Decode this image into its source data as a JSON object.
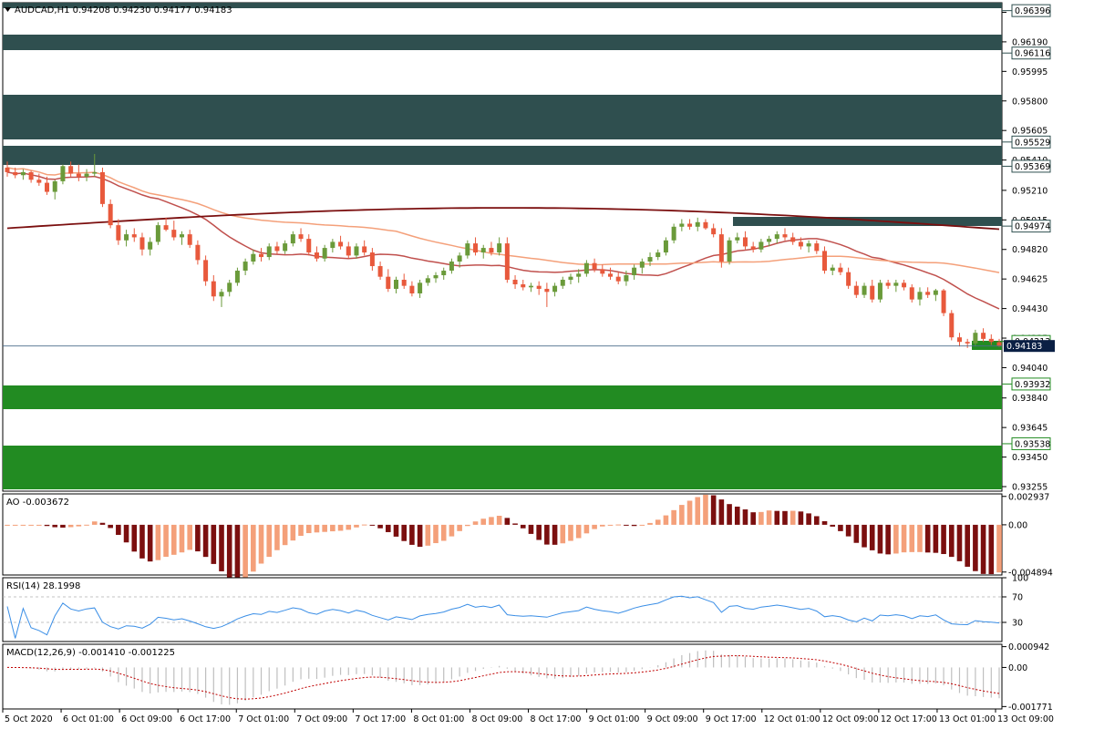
{
  "window": {
    "symbol_header": "AUDCAD,H1  0.94208 0.94230 0.94177 0.94183"
  },
  "main_price_axis": {
    "ticks": [
      "0.96385",
      "0.96190",
      "0.95995",
      "0.95800",
      "0.95605",
      "0.95410",
      "0.95210",
      "0.95015",
      "0.94820",
      "0.94625",
      "0.94430",
      "0.94235",
      "0.94040",
      "0.93840",
      "0.93645",
      "0.93450",
      "0.93255"
    ]
  },
  "zones": [
    {
      "label": "0.96396",
      "kind": "resistance"
    },
    {
      "label": "0.96116",
      "kind": "resistance"
    },
    {
      "label": "0.95529",
      "kind": "resistance"
    },
    {
      "label": "0.95369",
      "kind": "resistance"
    },
    {
      "label": "0.94974",
      "kind": "resistance"
    },
    {
      "label": "0.94213",
      "kind": "support"
    },
    {
      "label": "0.93932",
      "kind": "support"
    },
    {
      "label": "0.93538",
      "kind": "support"
    }
  ],
  "current_price": "0.94183",
  "indicators": {
    "ao": {
      "label": "AO -0.003672",
      "ticks": [
        "0.002937",
        "0.00",
        "-0.004894"
      ]
    },
    "rsi": {
      "label": "RSI(14) 28.1998",
      "ticks": [
        "100",
        "70",
        "30",
        "0"
      ]
    },
    "macd": {
      "label": "MACD(12,26,9) -0.001410 -0.001225",
      "ticks": [
        "0.000942",
        "0.00",
        "-0.001771"
      ]
    }
  },
  "time_axis": [
    "5 Oct 2020",
    "6 Oct 01:00",
    "6 Oct 09:00",
    "6 Oct 17:00",
    "7 Oct 01:00",
    "7 Oct 09:00",
    "7 Oct 17:00",
    "8 Oct 01:00",
    "8 Oct 09:00",
    "8 Oct 17:00",
    "9 Oct 01:00",
    "9 Oct 09:00",
    "9 Oct 17:00",
    "12 Oct 01:00",
    "12 Oct 09:00",
    "12 Oct 17:00",
    "13 Oct 01:00",
    "13 Oct 09:00"
  ],
  "colors": {
    "bull": "#6a9a3a",
    "bear": "#e8593c",
    "resistance_zone": "#2f4f4f",
    "support_zone": "#228b22",
    "ma_fast": "#c0504d",
    "ma_mid": "#f4a07a",
    "ma_slow": "#7b0f0f",
    "ao_up": "#f4a07a",
    "ao_down": "#7b0f0f",
    "rsi_line": "#3a8ee6",
    "macd_signal": "#c00000",
    "macd_hist": "#bfbfbf"
  },
  "chart_data": {
    "type": "candlestick",
    "candles": [
      [
        0.9536,
        0.954,
        0.953,
        0.9533
      ],
      [
        0.9533,
        0.9536,
        0.9529,
        0.9531
      ],
      [
        0.9531,
        0.9535,
        0.9528,
        0.9533
      ],
      [
        0.9533,
        0.9534,
        0.9526,
        0.9528
      ],
      [
        0.9528,
        0.9532,
        0.9524,
        0.9526
      ],
      [
        0.9526,
        0.953,
        0.9518,
        0.952
      ],
      [
        0.952,
        0.9528,
        0.9515,
        0.9527
      ],
      [
        0.9527,
        0.9538,
        0.9525,
        0.9537
      ],
      [
        0.9537,
        0.954,
        0.953,
        0.9532
      ],
      [
        0.9532,
        0.9538,
        0.9527,
        0.953
      ],
      [
        0.953,
        0.9535,
        0.9527,
        0.9532
      ],
      [
        0.9532,
        0.9545,
        0.953,
        0.9533
      ],
      [
        0.9533,
        0.9536,
        0.951,
        0.9512
      ],
      [
        0.9512,
        0.9515,
        0.9496,
        0.9498
      ],
      [
        0.9498,
        0.9502,
        0.9485,
        0.9488
      ],
      [
        0.9488,
        0.9495,
        0.9484,
        0.9492
      ],
      [
        0.9492,
        0.9496,
        0.9487,
        0.949
      ],
      [
        0.949,
        0.9493,
        0.9478,
        0.9482
      ],
      [
        0.9482,
        0.949,
        0.9478,
        0.9487
      ],
      [
        0.9487,
        0.95,
        0.9485,
        0.9498
      ],
      [
        0.9498,
        0.9503,
        0.9494,
        0.9495
      ],
      [
        0.9495,
        0.9501,
        0.9488,
        0.949
      ],
      [
        0.949,
        0.9494,
        0.9485,
        0.9492
      ],
      [
        0.9492,
        0.9495,
        0.9483,
        0.9485
      ],
      [
        0.9485,
        0.9488,
        0.9472,
        0.9475
      ],
      [
        0.9475,
        0.9478,
        0.9458,
        0.9461
      ],
      [
        0.9461,
        0.9465,
        0.9448,
        0.9451
      ],
      [
        0.9451,
        0.9456,
        0.9444,
        0.9454
      ],
      [
        0.9454,
        0.9462,
        0.9451,
        0.946
      ],
      [
        0.946,
        0.947,
        0.9458,
        0.9468
      ],
      [
        0.9468,
        0.9476,
        0.9465,
        0.9474
      ],
      [
        0.9474,
        0.9482,
        0.9472,
        0.9479
      ],
      [
        0.9479,
        0.9483,
        0.9474,
        0.9477
      ],
      [
        0.9477,
        0.9486,
        0.9475,
        0.9484
      ],
      [
        0.9484,
        0.9487,
        0.9479,
        0.9481
      ],
      [
        0.9481,
        0.9488,
        0.9479,
        0.9486
      ],
      [
        0.9486,
        0.9494,
        0.9484,
        0.9492
      ],
      [
        0.9492,
        0.9496,
        0.9487,
        0.9489
      ],
      [
        0.9489,
        0.9492,
        0.9478,
        0.948
      ],
      [
        0.948,
        0.9484,
        0.9474,
        0.9476
      ],
      [
        0.9476,
        0.9485,
        0.9474,
        0.9483
      ],
      [
        0.9483,
        0.9489,
        0.948,
        0.9487
      ],
      [
        0.9487,
        0.9491,
        0.9482,
        0.9484
      ],
      [
        0.9484,
        0.9487,
        0.9476,
        0.9478
      ],
      [
        0.9478,
        0.9486,
        0.9476,
        0.9484
      ],
      [
        0.9484,
        0.9488,
        0.9478,
        0.948
      ],
      [
        0.948,
        0.9483,
        0.9468,
        0.9471
      ],
      [
        0.9471,
        0.9474,
        0.9462,
        0.9464
      ],
      [
        0.9464,
        0.9469,
        0.9454,
        0.9456
      ],
      [
        0.9456,
        0.9464,
        0.9453,
        0.9462
      ],
      [
        0.9462,
        0.9466,
        0.9456,
        0.9458
      ],
      [
        0.9458,
        0.9461,
        0.9451,
        0.9453
      ],
      [
        0.9453,
        0.9462,
        0.945,
        0.946
      ],
      [
        0.946,
        0.9465,
        0.9458,
        0.9463
      ],
      [
        0.9463,
        0.9467,
        0.946,
        0.9465
      ],
      [
        0.9465,
        0.947,
        0.9462,
        0.9468
      ],
      [
        0.9468,
        0.9476,
        0.9466,
        0.9474
      ],
      [
        0.9474,
        0.948,
        0.947,
        0.9478
      ],
      [
        0.9478,
        0.9488,
        0.9476,
        0.9486
      ],
      [
        0.9486,
        0.949,
        0.9478,
        0.948
      ],
      [
        0.948,
        0.9485,
        0.9476,
        0.9483
      ],
      [
        0.9483,
        0.9487,
        0.9478,
        0.948
      ],
      [
        0.948,
        0.949,
        0.9478,
        0.9486
      ],
      [
        0.9486,
        0.949,
        0.946,
        0.9462
      ],
      [
        0.9462,
        0.9465,
        0.9456,
        0.9459
      ],
      [
        0.9459,
        0.9462,
        0.9455,
        0.9457
      ],
      [
        0.9457,
        0.946,
        0.9454,
        0.9458
      ],
      [
        0.9458,
        0.9461,
        0.9452,
        0.9456
      ],
      [
        0.9456,
        0.946,
        0.9444,
        0.9454
      ],
      [
        0.9454,
        0.946,
        0.9451,
        0.9458
      ],
      [
        0.9458,
        0.9464,
        0.9456,
        0.9462
      ],
      [
        0.9462,
        0.9466,
        0.9459,
        0.9464
      ],
      [
        0.9464,
        0.9469,
        0.946,
        0.9466
      ],
      [
        0.9466,
        0.9475,
        0.9464,
        0.9473
      ],
      [
        0.9473,
        0.9476,
        0.9467,
        0.9469
      ],
      [
        0.9469,
        0.9472,
        0.9464,
        0.9466
      ],
      [
        0.9466,
        0.947,
        0.9462,
        0.9464
      ],
      [
        0.9464,
        0.9467,
        0.9459,
        0.9461
      ],
      [
        0.9461,
        0.9468,
        0.9458,
        0.9465
      ],
      [
        0.9465,
        0.9472,
        0.9462,
        0.947
      ],
      [
        0.947,
        0.9476,
        0.9466,
        0.9474
      ],
      [
        0.9474,
        0.948,
        0.9471,
        0.9477
      ],
      [
        0.9477,
        0.9482,
        0.9475,
        0.948
      ],
      [
        0.948,
        0.949,
        0.9478,
        0.9488
      ],
      [
        0.9488,
        0.9499,
        0.9486,
        0.9497
      ],
      [
        0.9497,
        0.9502,
        0.9494,
        0.9499
      ],
      [
        0.9499,
        0.9502,
        0.9495,
        0.9497
      ],
      [
        0.9497,
        0.9503,
        0.9494,
        0.95
      ],
      [
        0.95,
        0.9502,
        0.9495,
        0.9496
      ],
      [
        0.9496,
        0.9499,
        0.949,
        0.9492
      ],
      [
        0.9492,
        0.9496,
        0.947,
        0.9474
      ],
      [
        0.9474,
        0.949,
        0.9472,
        0.9488
      ],
      [
        0.9488,
        0.9493,
        0.9486,
        0.949
      ],
      [
        0.949,
        0.9494,
        0.9482,
        0.9484
      ],
      [
        0.9484,
        0.9487,
        0.948,
        0.9482
      ],
      [
        0.9482,
        0.9489,
        0.948,
        0.9487
      ],
      [
        0.9487,
        0.9491,
        0.9484,
        0.9489
      ],
      [
        0.9489,
        0.9494,
        0.9486,
        0.9492
      ],
      [
        0.9492,
        0.9496,
        0.9488,
        0.949
      ],
      [
        0.949,
        0.9493,
        0.9485,
        0.9487
      ],
      [
        0.9487,
        0.949,
        0.9482,
        0.9484
      ],
      [
        0.9484,
        0.9488,
        0.948,
        0.9486
      ],
      [
        0.9486,
        0.9488,
        0.9479,
        0.9481
      ],
      [
        0.9481,
        0.9484,
        0.9466,
        0.9468
      ],
      [
        0.9468,
        0.9472,
        0.9465,
        0.947
      ],
      [
        0.947,
        0.9473,
        0.9465,
        0.9467
      ],
      [
        0.9467,
        0.947,
        0.9456,
        0.9458
      ],
      [
        0.9458,
        0.9461,
        0.945,
        0.9452
      ],
      [
        0.9452,
        0.946,
        0.945,
        0.9458
      ],
      [
        0.9458,
        0.9462,
        0.9447,
        0.9449
      ],
      [
        0.9449,
        0.9462,
        0.9447,
        0.946
      ],
      [
        0.946,
        0.9462,
        0.9456,
        0.9458
      ],
      [
        0.9458,
        0.9462,
        0.9454,
        0.946
      ],
      [
        0.946,
        0.9462,
        0.9455,
        0.9457
      ],
      [
        0.9457,
        0.9459,
        0.9447,
        0.9449
      ],
      [
        0.9449,
        0.9457,
        0.9445,
        0.9454
      ],
      [
        0.9454,
        0.9457,
        0.945,
        0.9452
      ],
      [
        0.9452,
        0.9456,
        0.9448,
        0.9455
      ],
      [
        0.9455,
        0.9456,
        0.9438,
        0.944
      ],
      [
        0.944,
        0.9442,
        0.9422,
        0.9424
      ],
      [
        0.9424,
        0.9427,
        0.9418,
        0.9421
      ],
      [
        0.9421,
        0.9423,
        0.9417,
        0.942
      ],
      [
        0.942,
        0.9429,
        0.9418,
        0.9427
      ],
      [
        0.9427,
        0.943,
        0.9421,
        0.9423
      ],
      [
        0.9423,
        0.9426,
        0.9419,
        0.9421
      ],
      [
        0.94208,
        0.9423,
        0.94177,
        0.94183
      ]
    ]
  }
}
